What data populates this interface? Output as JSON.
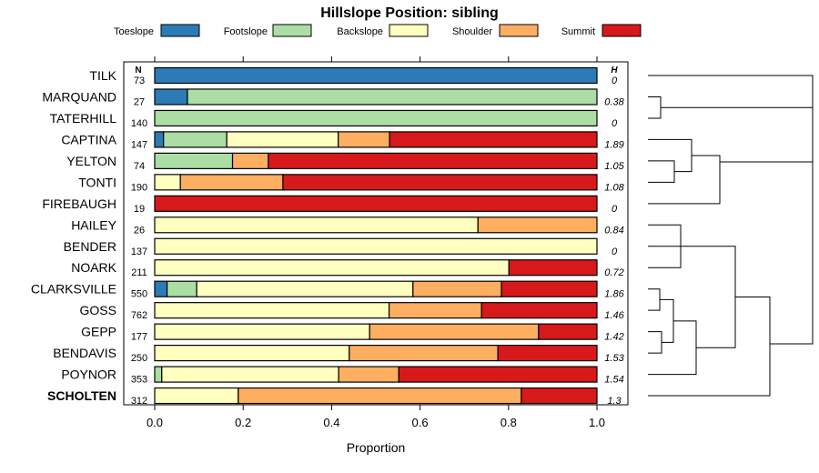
{
  "chart_data": {
    "type": "bar",
    "stacked": true,
    "orientation": "horizontal",
    "title": "Hillslope Position: sibling",
    "xlabel": "Proportion",
    "ylabel": "",
    "xlim": [
      0,
      1
    ],
    "xticks": [
      "0.0",
      "0.2",
      "0.4",
      "0.6",
      "0.8",
      "1.0"
    ],
    "xtick_values": [
      0,
      0.2,
      0.4,
      0.6,
      0.8,
      1.0
    ],
    "n_header": "N",
    "h_header": "H",
    "highlight": "SCHOLTEN",
    "legend_position": "top",
    "legend": [
      {
        "name": "Toeslope",
        "color": "#2C7BB6"
      },
      {
        "name": "Footslope",
        "color": "#ABDDA4"
      },
      {
        "name": "Backslope",
        "color": "#FFFFBF"
      },
      {
        "name": "Shoulder",
        "color": "#FDAE61"
      },
      {
        "name": "Summit",
        "color": "#D7191C"
      }
    ],
    "categories": [
      "TILK",
      "MARQUAND",
      "TATERHILL",
      "CAPTINA",
      "YELTON",
      "TONTI",
      "FIREBAUGH",
      "HAILEY",
      "BENDER",
      "NOARK",
      "CLARKSVILLE",
      "GOSS",
      "GEPP",
      "BENDAVIS",
      "POYNOR",
      "SCHOLTEN"
    ],
    "n": [
      "73",
      "27",
      "140",
      "147",
      "74",
      "190",
      "19",
      "26",
      "137",
      "211",
      "550",
      "762",
      "177",
      "250",
      "353",
      "312"
    ],
    "h": [
      "0",
      "0.38",
      "0",
      "1.89",
      "1.05",
      "1.08",
      "0",
      "0.84",
      "0",
      "0.72",
      "1.86",
      "1.46",
      "1.42",
      "1.53",
      "1.54",
      "1.3"
    ],
    "series": [
      {
        "name": "Toeslope",
        "values": [
          1.0,
          0.074,
          0,
          0.02,
          0,
          0,
          0,
          0,
          0,
          0,
          0.028,
          0,
          0,
          0,
          0,
          0
        ]
      },
      {
        "name": "Footslope",
        "values": [
          0,
          0.926,
          1.0,
          0.143,
          0.176,
          0,
          0,
          0,
          0,
          0,
          0.067,
          0,
          0,
          0,
          0.016,
          0
        ]
      },
      {
        "name": "Backslope",
        "values": [
          0,
          0,
          0,
          0.252,
          0,
          0.058,
          0,
          0.731,
          1.0,
          0.801,
          0.489,
          0.53,
          0.486,
          0.44,
          0.4,
          0.189
        ]
      },
      {
        "name": "Shoulder",
        "values": [
          0,
          0,
          0,
          0.116,
          0.081,
          0.232,
          0,
          0.269,
          0,
          0,
          0.2,
          0.209,
          0.382,
          0.336,
          0.136,
          0.64
        ]
      },
      {
        "name": "Summit",
        "values": [
          0,
          0,
          0,
          0.469,
          0.743,
          0.71,
          1.0,
          0,
          0,
          0.199,
          0.216,
          0.261,
          0.132,
          0.224,
          0.448,
          0.171
        ]
      }
    ],
    "dendrogram": {
      "description": "hierarchical clustering of siblings",
      "merges": [
        {
          "a": "MARQUAND",
          "b": "TATERHILL",
          "height": 0.03
        },
        {
          "a": "YELTON",
          "b": "TONTI",
          "height": 0.04
        },
        {
          "a": "CAPTINA",
          "b": "YELTON+TONTI",
          "height": 0.1
        },
        {
          "a": "CAPTINA+YELTON+TONTI",
          "b": "FIREBAUGH",
          "height": 0.17
        },
        {
          "a": "HAILEY",
          "b": "NOARK",
          "height": 0.08
        },
        {
          "a": "HAILEY+NOARK",
          "b": "BENDER",
          "height": 0.12
        },
        {
          "a": "CLARKSVILLE",
          "b": "GOSS",
          "height": 0.03
        },
        {
          "a": "GEPP",
          "b": "BENDAVIS",
          "height": 0.06
        },
        {
          "a": "CLARKSVILLE+GOSS",
          "b": "GEPP+BENDAVIS",
          "height": 0.07
        },
        {
          "a": "CL-GO-GE-BE",
          "b": "POYNOR",
          "height": 0.12
        },
        {
          "a": "CL-GO-GE-BE-PO",
          "b": "HAILEY+NOARK+BENDER",
          "height": 0.22
        },
        {
          "a": "TILK",
          "b": "MARQUAND+TATERHILL",
          "height": 0.4
        },
        {
          "a": "TILK-group",
          "b": "CAPTINA-group",
          "height": 0.4
        },
        {
          "a": "HAILEY-group",
          "b": "SCHOLTEN",
          "height": 0.3
        },
        {
          "a": "all-left",
          "b": "all-right",
          "height": 0.4
        }
      ]
    }
  }
}
